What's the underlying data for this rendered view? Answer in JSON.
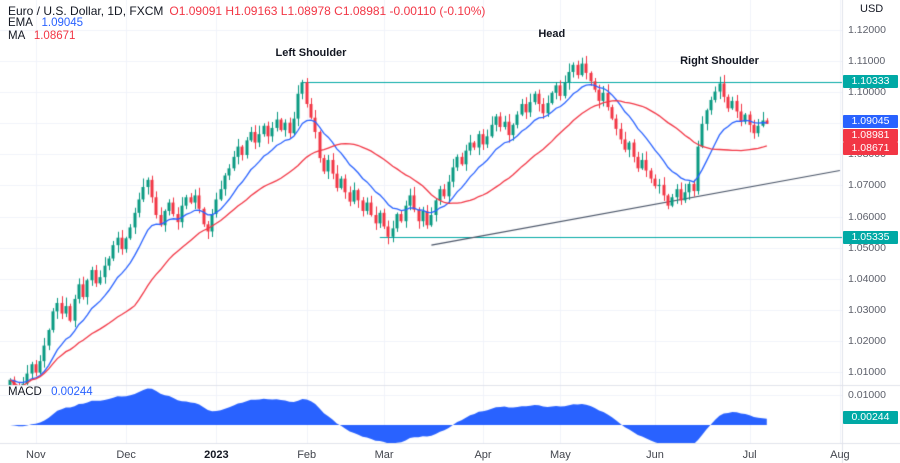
{
  "header": {
    "symbol": "Euro / U.S. Dollar, 1D, FXCM",
    "ohlc": "O1.09091 H1.09163 L1.08978 C1.08981 -0.00110 (-0.10%)",
    "ema_label": "EMA",
    "ema_value": "1.09045",
    "ma_label": "MA",
    "ma_value": "1.08671"
  },
  "macd_legend": {
    "label": "MACD",
    "value": "0.00244"
  },
  "axis": {
    "currency": "USD",
    "price_ticks": [
      {
        "label": "1.12000",
        "p": 1.12
      },
      {
        "label": "1.11000",
        "p": 1.11
      },
      {
        "label": "1.10000",
        "p": 1.1
      },
      {
        "label": "1.09000",
        "p": 1.09
      },
      {
        "label": "1.08000",
        "p": 1.08
      },
      {
        "label": "1.07000",
        "p": 1.07
      },
      {
        "label": "1.06000",
        "p": 1.06
      },
      {
        "label": "1.05000",
        "p": 1.05
      },
      {
        "label": "1.04000",
        "p": 1.04
      },
      {
        "label": "1.03000",
        "p": 1.03
      },
      {
        "label": "1.02000",
        "p": 1.02
      },
      {
        "label": "1.01000",
        "p": 1.01
      }
    ],
    "macd_ticks": [
      {
        "label": "0.01000",
        "v": 0.01
      }
    ],
    "tags": [
      {
        "label": "1.10333",
        "price": 1.10333,
        "bg": "#00A9A5"
      },
      {
        "label": "1.09045",
        "price": 1.09045,
        "bg": "#2962FF"
      },
      {
        "label": "1.08981",
        "price": 1.08981,
        "bg": "#F23645"
      },
      {
        "label": "1.08671",
        "price": 1.08671,
        "bg": "#F23645"
      },
      {
        "label": "1.05335",
        "price": 1.05335,
        "bg": "#00A9A5"
      }
    ],
    "macd_tag": {
      "label": "0.00244",
      "v": 0.00244,
      "bg": "#00A9A5"
    }
  },
  "time_axis": {
    "ticks": [
      {
        "label": "Nov",
        "i": 6
      },
      {
        "label": "Dec",
        "i": 27
      },
      {
        "label": "2023",
        "i": 48,
        "bold": true
      },
      {
        "label": "Feb",
        "i": 69
      },
      {
        "label": "Mar",
        "i": 87
      },
      {
        "label": "Apr",
        "i": 110
      },
      {
        "label": "May",
        "i": 128
      },
      {
        "label": "Jun",
        "i": 150
      },
      {
        "label": "Jul",
        "i": 172
      },
      {
        "label": "Aug",
        "i": 193
      }
    ]
  },
  "annotations": [
    {
      "label": "Left Shoulder",
      "i": 70,
      "p": 1.1125
    },
    {
      "label": "Head",
      "i": 126,
      "p": 1.1187
    },
    {
      "label": "Right Shoulder",
      "i": 165,
      "p": 1.11
    }
  ],
  "colors": {
    "up": "#089981",
    "down": "#F23645",
    "ema": "#2962FF",
    "ma": "#F23645",
    "teal": "#00A9A5",
    "macd_fill": "#2962FF",
    "grid": "#f0f3fa",
    "axis_border": "#e0e3eb",
    "trend": "#4a5568"
  },
  "chart_data": {
    "type": "candlestick",
    "symbol": "EUR/USD",
    "timeframe": "1D",
    "x_range": [
      "Nov 2022",
      "Aug 2023"
    ],
    "ylim": [
      1.005,
      1.125
    ],
    "levels": [
      {
        "price": 1.10333,
        "from_i": 68
      },
      {
        "price": 1.05335,
        "from_i": 86
      }
    ],
    "trendline": {
      "i1": 98,
      "p1": 1.0508,
      "i2": 193,
      "p2": 1.0748
    },
    "indicators": {
      "ema_period": 13,
      "ma_period": 30,
      "macd_fast": 12,
      "macd_slow": 26,
      "macd_last": 0.00244
    },
    "last_candle": {
      "o": 1.09091,
      "h": 1.09163,
      "l": 1.08978,
      "c": 1.08981
    },
    "closes": [
      1.0075,
      1.0052,
      1.0038,
      1.0062,
      1.0095,
      1.0125,
      1.0098,
      1.0135,
      1.0185,
      1.0235,
      1.0295,
      1.0322,
      1.0288,
      1.0312,
      1.0265,
      1.0335,
      1.0382,
      1.0341,
      1.0395,
      1.0428,
      1.0385,
      1.0405,
      1.0442,
      1.0465,
      1.0508,
      1.0532,
      1.0495,
      1.053,
      1.0565,
      1.0612,
      1.0655,
      1.0695,
      1.0718,
      1.0662,
      1.0605,
      1.0572,
      1.0618,
      1.0645,
      1.0608,
      1.0582,
      1.0635,
      1.0662,
      1.0645,
      1.0668,
      1.0625,
      1.0575,
      1.0552,
      1.0608,
      1.0655,
      1.0688,
      1.0732,
      1.0755,
      1.0792,
      1.0825,
      1.0798,
      1.0845,
      1.0872,
      1.0838,
      1.0865,
      1.0892,
      1.0858,
      1.0885,
      1.0912,
      1.0878,
      1.0902,
      1.0868,
      1.0915,
      1.0995,
      1.1032,
      1.0962,
      1.0918,
      1.0872,
      1.0788,
      1.0745,
      1.0782,
      1.0738,
      1.0692,
      1.0722,
      1.0678,
      1.0648,
      1.0685,
      1.0652,
      1.0618,
      1.0645,
      1.0605,
      1.0578,
      1.0612,
      1.0568,
      1.0535,
      1.0562,
      1.0608,
      1.0585,
      1.0635,
      1.0668,
      1.0622,
      1.0585,
      1.0618,
      1.0572,
      1.0605,
      1.0652,
      1.0688,
      1.0665,
      1.0712,
      1.0758,
      1.0792,
      1.0768,
      1.0812,
      1.0838,
      1.0822,
      1.0865,
      1.0832,
      1.0858,
      1.0895,
      1.0922,
      1.0888,
      1.0905,
      1.0862,
      1.0895,
      1.0928,
      1.0962,
      1.0935,
      1.0968,
      1.0995,
      1.0962,
      1.0932,
      1.0965,
      1.0998,
      1.1022,
      1.0988,
      1.1032,
      1.1065,
      1.1088,
      1.1055,
      1.1092,
      1.1062,
      1.1035,
      1.1008,
      1.0972,
      1.0998,
      1.0952,
      1.0915,
      1.0882,
      1.0848,
      1.0815,
      1.0838,
      1.0792,
      1.0755,
      1.0782,
      1.0748,
      1.0722,
      1.0698,
      1.0702,
      1.0668,
      1.0635,
      1.0662,
      1.0688,
      1.0652,
      1.0678,
      1.0705,
      1.0682,
      1.0825,
      1.0898,
      1.0942,
      1.0975,
      1.1002,
      1.1028,
      1.0985,
      1.0948,
      1.0972,
      1.0938,
      1.0905,
      1.0928,
      1.0895,
      1.0868,
      1.0892,
      1.0909,
      1.08981
    ]
  }
}
